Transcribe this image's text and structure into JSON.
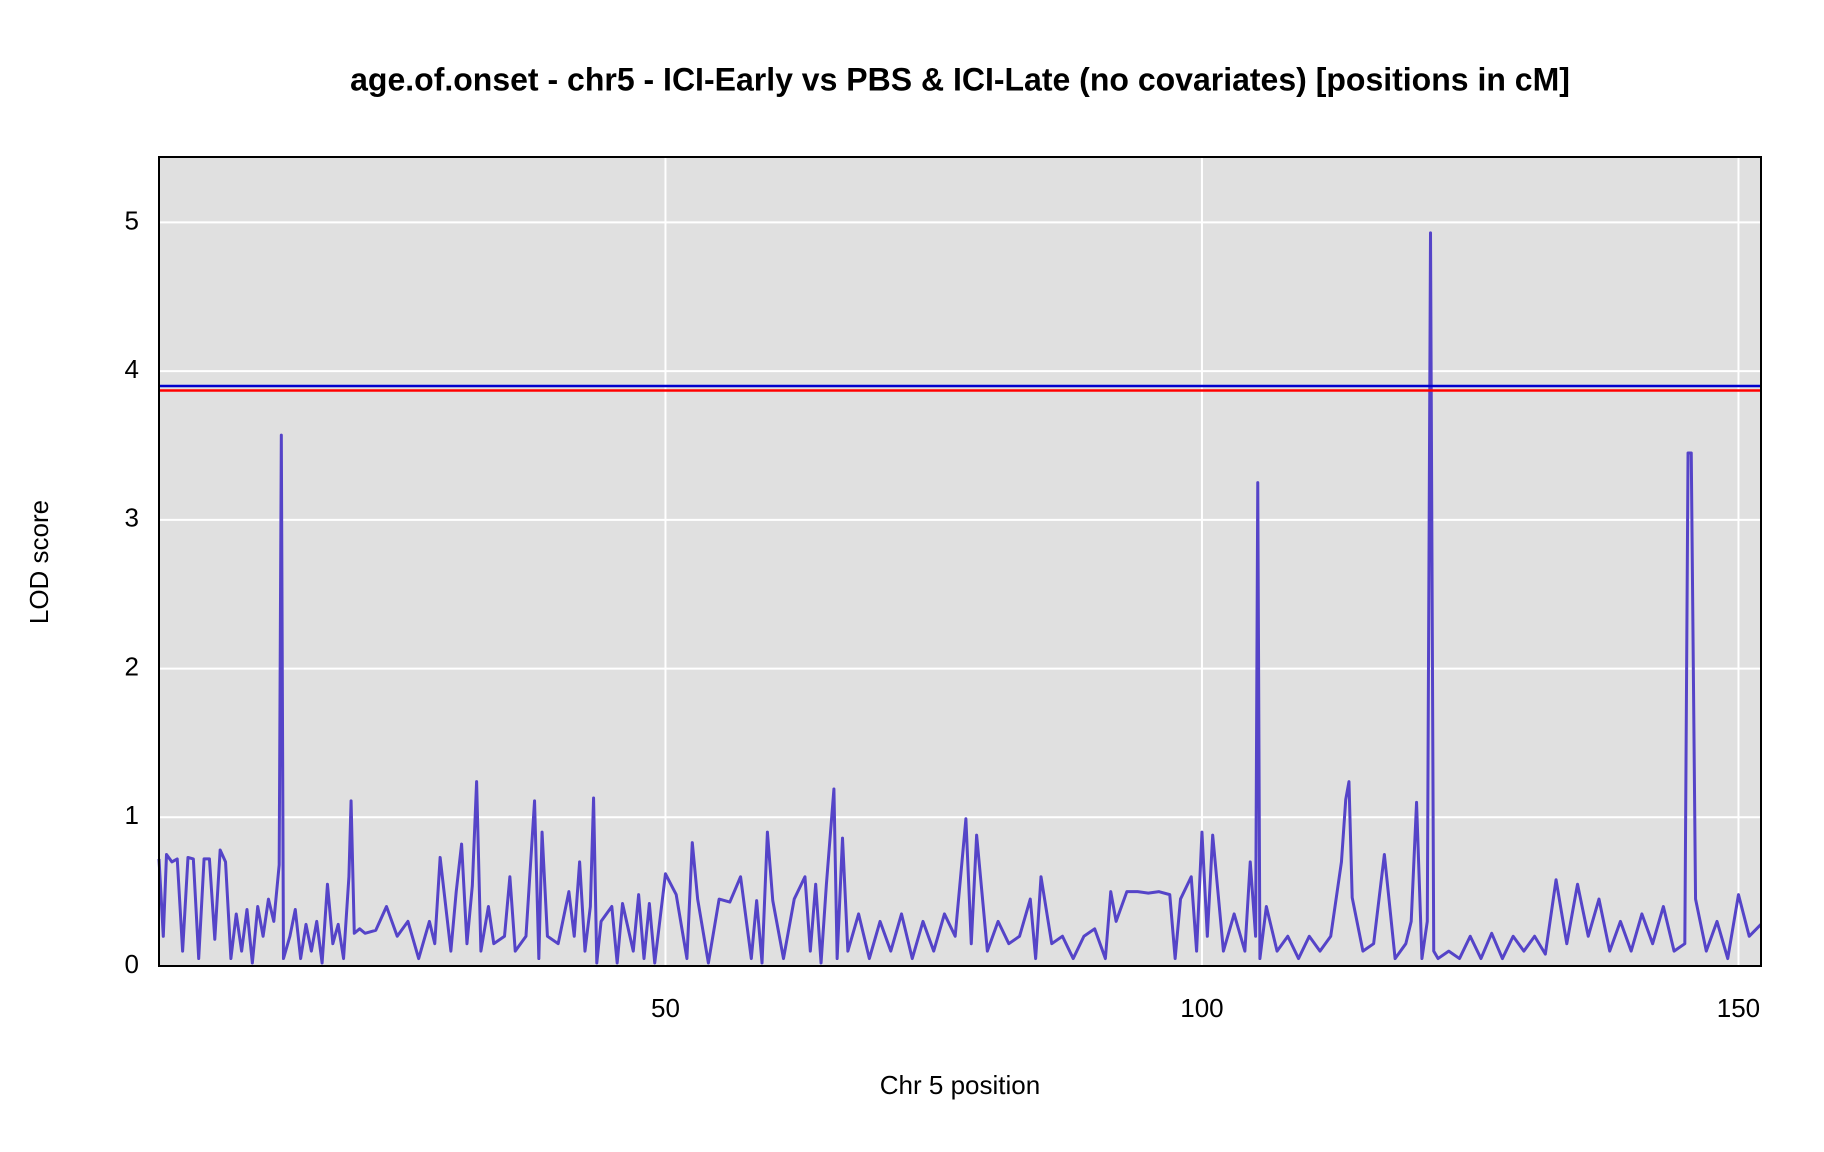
{
  "chart_data": {
    "type": "line",
    "title": "age.of.onset - chr5 - ICI-Early vs PBS & ICI-Late (no covariates) [positions in cM]",
    "x_label": "Chr 5 position",
    "y_label": "LOD score",
    "x": [
      2.8,
      3.2,
      3.5,
      4,
      4.5,
      5,
      5.5,
      6,
      6.5,
      7,
      7.5,
      8,
      8.5,
      9,
      9.5,
      10,
      10.5,
      11,
      11.5,
      12,
      12.5,
      13,
      13.5,
      14,
      14.2,
      14.4,
      15,
      15.5,
      16,
      16.5,
      17,
      17.5,
      18,
      18.5,
      19,
      19.5,
      20,
      20.5,
      20.7,
      21,
      21.5,
      22,
      23,
      24,
      25,
      26,
      27,
      28,
      28.5,
      29,
      30,
      30.5,
      31,
      31.5,
      32,
      32.4,
      32.8,
      33.5,
      34,
      35,
      35.5,
      36,
      37,
      37.8,
      38.2,
      38.5,
      39,
      40,
      41,
      41.5,
      42,
      42.5,
      43,
      43.3,
      43.6,
      44,
      45,
      45.5,
      46,
      47,
      47.5,
      48,
      48.5,
      49,
      50,
      51,
      52,
      52.5,
      53,
      54,
      55,
      56,
      57,
      58,
      58.5,
      59,
      59.5,
      60,
      61,
      62,
      63,
      63.5,
      64,
      64.5,
      65,
      65.7,
      66,
      66.5,
      67,
      68,
      69,
      70,
      71,
      72,
      73,
      74,
      75,
      76,
      77,
      78,
      78.5,
      79,
      80,
      81,
      82,
      83,
      84,
      84.5,
      85,
      86,
      87,
      88,
      89,
      90,
      91,
      91.5,
      92,
      93,
      94,
      95,
      96,
      97,
      97.5,
      98,
      99,
      99.5,
      100,
      100.5,
      101,
      102,
      103,
      104,
      104.5,
      105,
      105.2,
      105.4,
      106,
      107,
      108,
      109,
      110,
      111,
      112,
      113,
      113.4,
      113.7,
      114,
      115,
      116,
      117,
      118,
      119,
      119.5,
      120,
      120.5,
      121,
      121.3,
      121.6,
      122,
      123,
      124,
      125,
      126,
      127,
      128,
      129,
      130,
      131,
      132,
      133,
      134,
      135,
      136,
      137,
      138,
      139,
      140,
      141,
      142,
      143,
      144,
      145,
      145.3,
      145.6,
      146,
      147,
      148,
      149,
      150,
      151,
      152.1
    ],
    "series": [
      {
        "color": "#5544c8",
        "values": [
          0.72,
          0.2,
          0.75,
          0.7,
          0.72,
          0.1,
          0.73,
          0.72,
          0.05,
          0.72,
          0.72,
          0.18,
          0.78,
          0.7,
          0.05,
          0.35,
          0.1,
          0.38,
          0.02,
          0.4,
          0.2,
          0.45,
          0.3,
          0.68,
          3.57,
          0.05,
          0.2,
          0.38,
          0.05,
          0.28,
          0.1,
          0.3,
          0.02,
          0.55,
          0.15,
          0.28,
          0.05,
          0.6,
          1.11,
          0.22,
          0.25,
          0.22,
          0.24,
          0.4,
          0.2,
          0.3,
          0.05,
          0.3,
          0.15,
          0.73,
          0.1,
          0.5,
          0.82,
          0.15,
          0.54,
          1.24,
          0.1,
          0.4,
          0.15,
          0.2,
          0.6,
          0.1,
          0.2,
          1.11,
          0.05,
          0.9,
          0.2,
          0.15,
          0.5,
          0.2,
          0.7,
          0.1,
          0.4,
          1.13,
          0.02,
          0.3,
          0.4,
          0.02,
          0.42,
          0.1,
          0.48,
          0.05,
          0.42,
          0.02,
          0.62,
          0.48,
          0.05,
          0.83,
          0.45,
          0.02,
          0.45,
          0.43,
          0.6,
          0.05,
          0.44,
          0.02,
          0.9,
          0.44,
          0.05,
          0.45,
          0.6,
          0.1,
          0.55,
          0.02,
          0.55,
          1.19,
          0.05,
          0.86,
          0.1,
          0.35,
          0.05,
          0.3,
          0.1,
          0.35,
          0.05,
          0.3,
          0.1,
          0.35,
          0.2,
          0.99,
          0.15,
          0.88,
          0.1,
          0.3,
          0.15,
          0.2,
          0.45,
          0.05,
          0.6,
          0.15,
          0.2,
          0.05,
          0.2,
          0.25,
          0.05,
          0.5,
          0.3,
          0.5,
          0.5,
          0.49,
          0.5,
          0.48,
          0.05,
          0.45,
          0.6,
          0.1,
          0.9,
          0.2,
          0.88,
          0.1,
          0.35,
          0.1,
          0.7,
          0.2,
          3.25,
          0.05,
          0.4,
          0.1,
          0.2,
          0.05,
          0.2,
          0.1,
          0.2,
          0.7,
          1.12,
          1.24,
          0.46,
          0.1,
          0.15,
          0.75,
          0.05,
          0.15,
          0.3,
          1.1,
          0.05,
          0.3,
          4.93,
          0.1,
          0.05,
          0.1,
          0.05,
          0.2,
          0.05,
          0.22,
          0.05,
          0.2,
          0.1,
          0.2,
          0.08,
          0.58,
          0.15,
          0.55,
          0.2,
          0.45,
          0.1,
          0.3,
          0.1,
          0.35,
          0.15,
          0.4,
          0.1,
          0.15,
          3.45,
          3.45,
          0.45,
          0.1,
          0.3,
          0.05,
          0.48,
          0.2,
          0.28
        ]
      }
    ],
    "hlines": [
      {
        "value": 3.9,
        "color": "#0000cc"
      },
      {
        "value": 3.87,
        "color": "#ff0000"
      }
    ],
    "xlim": [
      2.8,
      152.1
    ],
    "ylim": [
      0,
      5.44
    ],
    "xticks": [
      50,
      100,
      150
    ],
    "yticks": [
      0,
      1,
      2,
      3,
      4,
      5
    ],
    "grid": true
  }
}
